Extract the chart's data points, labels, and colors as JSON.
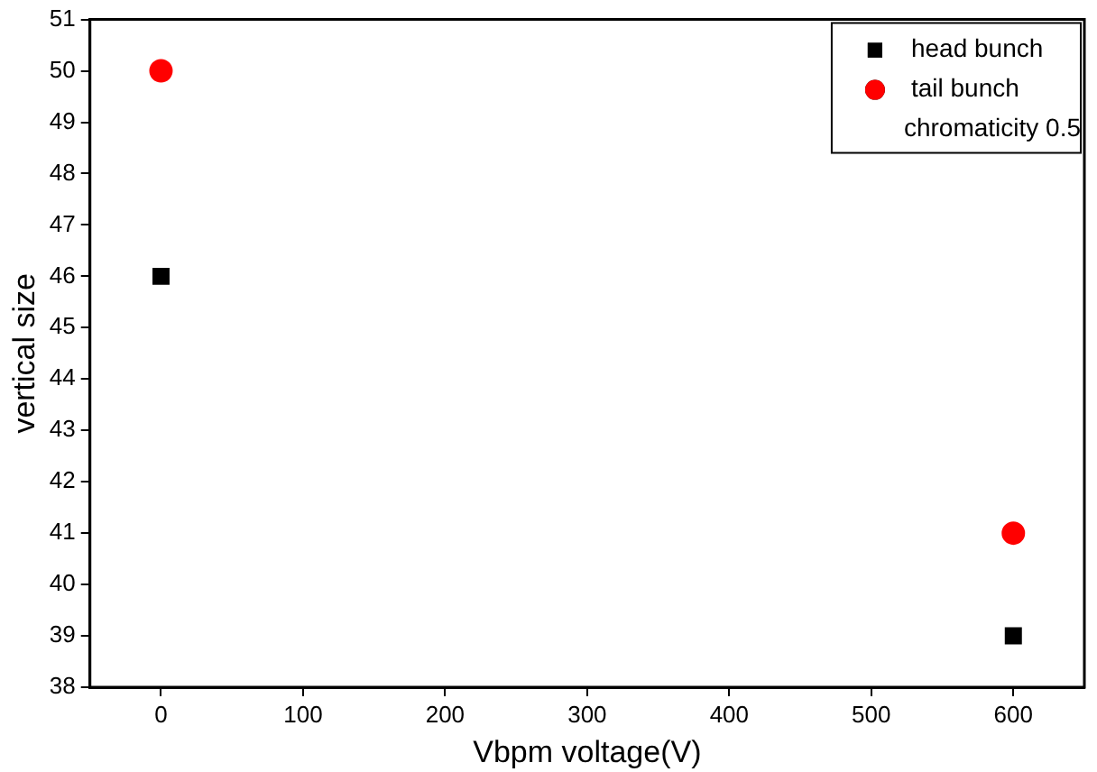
{
  "chart_data": {
    "type": "scatter",
    "xlabel": "Vbpm voltage(V)",
    "ylabel": "vertical size",
    "xlim": [
      -50,
      650
    ],
    "xticks": [
      0,
      100,
      200,
      300,
      400,
      500,
      600
    ],
    "ylim": [
      38,
      51
    ],
    "yticks": [
      38,
      39,
      40,
      41,
      42,
      43,
      44,
      45,
      46,
      47,
      48,
      49,
      50,
      51
    ],
    "grid": false,
    "legend": "top right",
    "x": [
      0,
      600
    ],
    "annotations": [
      "chromaticity 0.5"
    ],
    "series": [
      {
        "name": "head bunch",
        "color": "#000000",
        "marker": "square",
        "values": [
          46,
          39
        ]
      },
      {
        "name": "tail bunch",
        "color": "#ff0000",
        "marker": "circle",
        "values": [
          50,
          41
        ]
      }
    ]
  }
}
